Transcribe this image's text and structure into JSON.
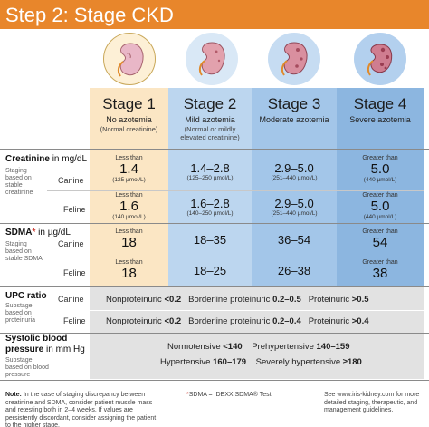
{
  "title": "Step 2: Stage CKD",
  "stages": [
    {
      "name": "Stage 1",
      "desc": "No azotemia",
      "sub": "(Normal creatinine)"
    },
    {
      "name": "Stage 2",
      "desc": "Mild azotemia",
      "sub": "(Normal or mildly elevated creatinine)"
    },
    {
      "name": "Stage 3",
      "desc": "Moderate azotemia",
      "sub": ""
    },
    {
      "name": "Stage 4",
      "desc": "Severe azotemia",
      "sub": ""
    }
  ],
  "creatinine": {
    "label": "Creatinine",
    "unit": "in mg/dL",
    "note": "Staging based on stable creatinine",
    "canine_label": "Canine",
    "feline_label": "Feline",
    "canine": [
      {
        "prefix": "Less than",
        "value": "1.4",
        "umol": "(125 µmol/L)"
      },
      {
        "prefix": "",
        "value": "1.4–2.8",
        "umol": "(125–250 µmol/L)"
      },
      {
        "prefix": "",
        "value": "2.9–5.0",
        "umol": "(251–440 µmol/L)"
      },
      {
        "prefix": "Greater than",
        "value": "5.0",
        "umol": "(440 µmol/L)"
      }
    ],
    "feline": [
      {
        "prefix": "Less than",
        "value": "1.6",
        "umol": "(140 µmol/L)"
      },
      {
        "prefix": "",
        "value": "1.6–2.8",
        "umol": "(140–250 µmol/L)"
      },
      {
        "prefix": "",
        "value": "2.9–5.0",
        "umol": "(251–440 µmol/L)"
      },
      {
        "prefix": "Greater than",
        "value": "5.0",
        "umol": "(440 µmol/L)"
      }
    ]
  },
  "sdma": {
    "label": "SDMA",
    "star": "*",
    "unit": "in µg/dL",
    "note": "Staging based on stable SDMA",
    "canine_label": "Canine",
    "feline_label": "Feline",
    "canine": [
      {
        "prefix": "Less than",
        "value": "18"
      },
      {
        "prefix": "",
        "value": "18–35"
      },
      {
        "prefix": "",
        "value": "36–54"
      },
      {
        "prefix": "Greater than",
        "value": "54"
      }
    ],
    "feline": [
      {
        "prefix": "Less than",
        "value": "18"
      },
      {
        "prefix": "",
        "value": "18–25"
      },
      {
        "prefix": "",
        "value": "26–38"
      },
      {
        "prefix": "Greater than",
        "value": "38"
      }
    ]
  },
  "upc": {
    "label": "UPC ratio",
    "note": "Substage based on proteinuria",
    "canine_label": "Canine",
    "feline_label": "Feline",
    "canine": {
      "non": "Nonproteinuric",
      "non_v": "<0.2",
      "border": "Borderline proteinuric",
      "border_v": "0.2–0.5",
      "prot": "Proteinuric",
      "prot_v": ">0.5"
    },
    "feline": {
      "non": "Nonproteinuric",
      "non_v": "<0.2",
      "border": "Borderline proteinuric",
      "border_v": "0.2–0.4",
      "prot": "Proteinuric",
      "prot_v": ">0.4"
    }
  },
  "bp": {
    "label1": "Systolic blood",
    "label2": "pressure",
    "unit": "in mm Hg",
    "note": "Substage based on blood pressure",
    "normo": "Normotensive",
    "normo_v": "<140",
    "prehyp": "Prehypertensive",
    "prehyp_v": "140–159",
    "hyp": "Hypertensive",
    "hyp_v": "160–179",
    "severe": "Severely hypertensive",
    "severe_v": "≥180"
  },
  "footer": {
    "note_label": "Note:",
    "note": "In the case of staging discrepancy between creatinine and SDMA, consider patient muscle mass and retesting both in 2–4 weeks. If values are persistently discordant, consider assigning the patient to the higher stage.",
    "sdma_star": "*",
    "sdma_def": "SDMA = IDEXX SDMA® Test",
    "see": "See www.iris-kidney.com for more detailed staging, therapeutic, and management guidelines."
  },
  "colors": {
    "title_bar": "#e8862b",
    "stage1": "#fbe6c4",
    "stage2": "#bcd6ef",
    "stage3": "#a3c6e9",
    "stage4": "#8cb6e0",
    "band": "#e2e2e2"
  },
  "icons": [
    "kidney-normal-icon",
    "kidney-mild-icon",
    "kidney-moderate-icon",
    "kidney-severe-icon"
  ]
}
